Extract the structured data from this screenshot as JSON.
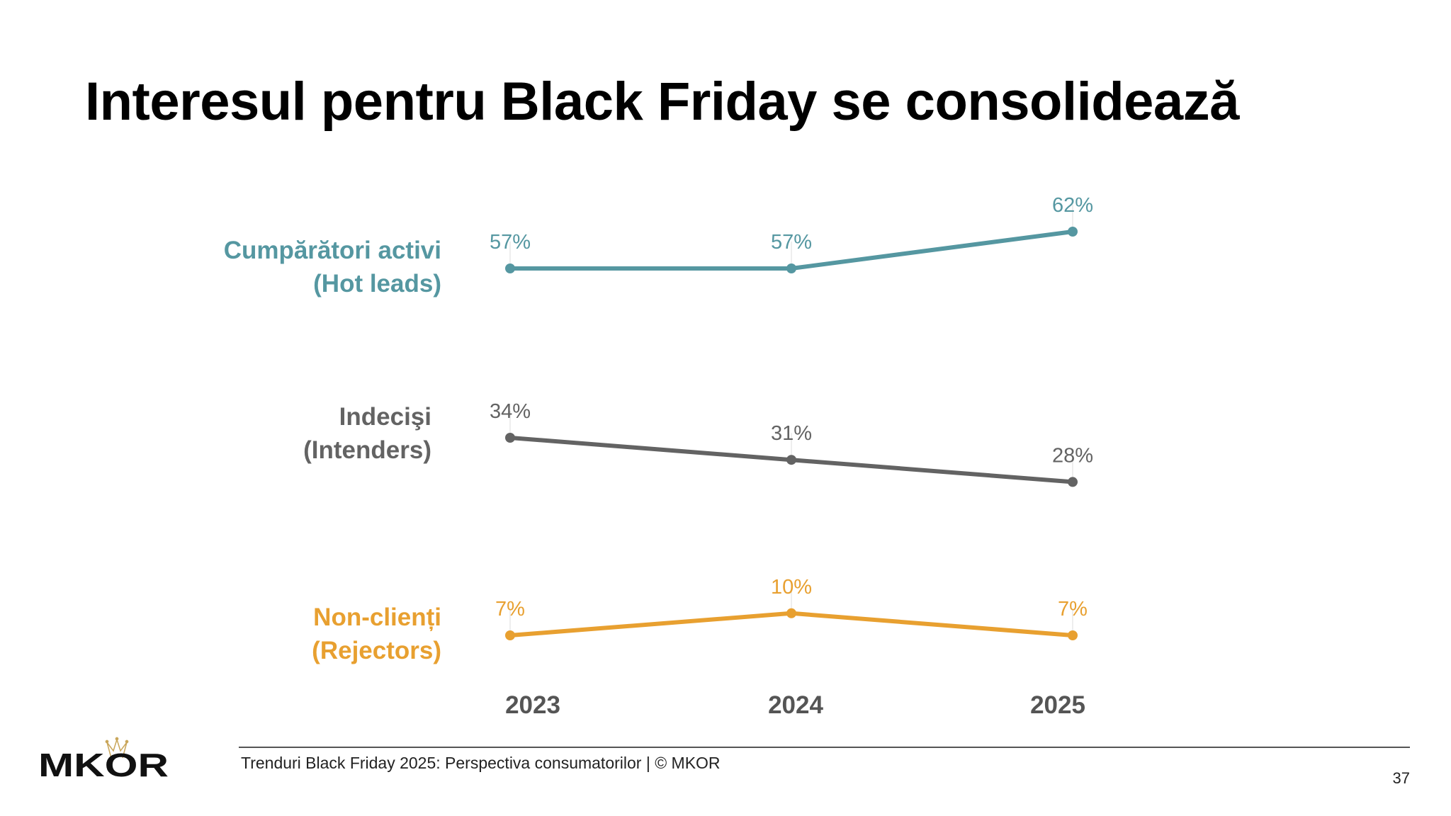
{
  "title": "Interesul pentru Black Friday se consolidează",
  "chart_data": {
    "type": "line",
    "title": "Interesul pentru Black Friday se consolidează",
    "categories": [
      "2023",
      "2024",
      "2025"
    ],
    "series": [
      {
        "name": "Cumpărători activi",
        "subname": "(Hot leads)",
        "values": [
          57,
          57,
          62
        ],
        "labels": [
          "57%",
          "57%",
          "62%"
        ],
        "color": "#5597a1"
      },
      {
        "name": "Indecişi",
        "subname": "(Intenders)",
        "values": [
          34,
          31,
          28
        ],
        "labels": [
          "34%",
          "31%",
          "28%"
        ],
        "color": "#636363"
      },
      {
        "name": "Non-clienți",
        "subname": "(Rejectors)",
        "values": [
          7,
          10,
          7
        ],
        "labels": [
          "7%",
          "10%",
          "7%"
        ],
        "color": "#e8a030"
      }
    ],
    "xlabel": "",
    "ylabel": "",
    "grid": false,
    "legend": "left"
  },
  "footer": {
    "text": "Trenduri Black Friday 2025: Perspectiva consumatorilor | © MKOR",
    "page": "37"
  },
  "logo": {
    "text": "MKOR"
  }
}
